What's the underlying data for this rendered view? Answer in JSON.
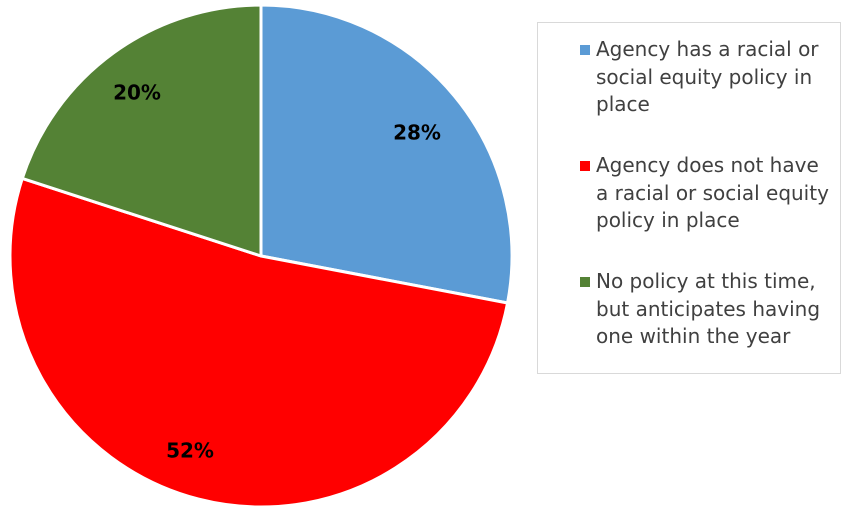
{
  "chart_data": {
    "type": "pie",
    "title": "",
    "slices": [
      {
        "label": "Agency has a racial or social equity policy in place",
        "value": 28,
        "display": "28%",
        "color": "#5B9BD5"
      },
      {
        "label": "Agency does not have a racial or social equity policy in place",
        "value": 52,
        "display": "52%",
        "color": "#FF0000"
      },
      {
        "label": "No policy at this time, but anticipates having one within the year",
        "value": 20,
        "display": "20%",
        "color": "#548235"
      }
    ],
    "start_angle": "12 o'clock",
    "direction": "clockwise",
    "legend_position": "right"
  },
  "legend": {
    "items": [
      {
        "text": "Agency has a racial or\nsocial equity policy in\nplace"
      },
      {
        "text": "Agency does not have\na racial or social equity\npolicy in place"
      },
      {
        "text": "No policy at this time,\nbut anticipates having\none within the year"
      }
    ]
  }
}
